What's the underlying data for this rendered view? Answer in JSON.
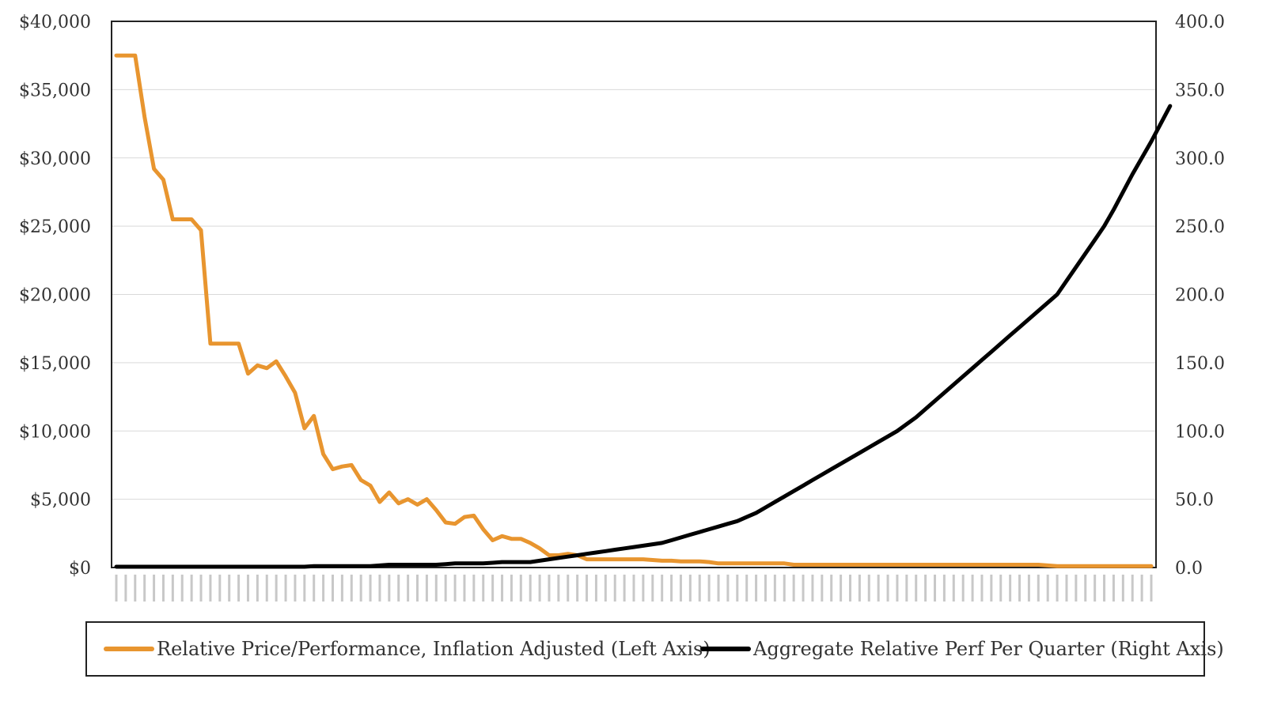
{
  "chart_data": {
    "type": "line",
    "x_tick_labels": "illegible (rotated quarter labels)",
    "y_left": {
      "ticks": [
        "$0",
        "$5,000",
        "$10,000",
        "$15,000",
        "$20,000",
        "$25,000",
        "$30,000",
        "$35,000",
        "$40,000"
      ],
      "ylim": [
        0,
        40000
      ]
    },
    "y_right": {
      "ticks": [
        "0.0",
        "50.0",
        "100.0",
        "150.0",
        "200.0",
        "250.0",
        "300.0",
        "350.0",
        "400.0"
      ],
      "ylim": [
        0,
        400
      ]
    },
    "grid": "horizontal",
    "legend_position": "bottom",
    "series": [
      {
        "name": "Relative Price/Performance, Inflation Adjusted (Left Axis)",
        "axis": "left",
        "color": "#e8952f",
        "values": [
          37500,
          37500,
          37500,
          33000,
          29200,
          28400,
          25500,
          25500,
          25500,
          24700,
          16400,
          16400,
          16400,
          16400,
          14200,
          14800,
          14600,
          15100,
          14000,
          12800,
          10200,
          11100,
          8300,
          7200,
          7400,
          7500,
          6400,
          6000,
          4800,
          5500,
          4700,
          5000,
          4600,
          5000,
          4200,
          3300,
          3200,
          3700,
          3800,
          2800,
          2000,
          2300,
          2100,
          2100,
          1800,
          1400,
          900,
          900,
          1000,
          900,
          600,
          600,
          600,
          600,
          600,
          600,
          600,
          550,
          500,
          500,
          450,
          450,
          450,
          400,
          300,
          300,
          300,
          300,
          300,
          300,
          300,
          300,
          200,
          200,
          200,
          200,
          200,
          200,
          200,
          200,
          200,
          200,
          200,
          200,
          200,
          200,
          200,
          200,
          200,
          200,
          200,
          200,
          200,
          200,
          200,
          200,
          200,
          200,
          200,
          150,
          100,
          100,
          100,
          100,
          100,
          100,
          100,
          100,
          100,
          100,
          100
        ]
      },
      {
        "name": "Aggregate Relative Perf Per Quarter (Right Axis)",
        "axis": "right",
        "color": "#000000",
        "values": [
          0.5,
          0.5,
          0.5,
          0.5,
          0.5,
          0.5,
          0.5,
          0.5,
          0.5,
          0.5,
          0.5,
          0.5,
          0.5,
          0.5,
          0.5,
          0.5,
          0.5,
          0.5,
          0.5,
          0.5,
          0.5,
          1,
          1,
          1,
          1,
          1,
          1,
          1,
          1.5,
          2,
          2,
          2,
          2,
          2,
          2,
          2.5,
          3,
          3,
          3,
          3,
          3.5,
          4,
          4,
          4,
          4,
          5,
          6,
          7,
          8,
          9,
          10,
          11,
          12,
          13,
          14,
          15,
          16,
          17,
          18,
          20,
          22,
          24,
          26,
          28,
          30,
          32,
          34,
          37,
          40,
          44,
          48,
          52,
          56,
          60,
          64,
          68,
          72,
          76,
          80,
          84,
          88,
          92,
          96,
          100,
          105,
          110,
          116,
          122,
          128,
          134,
          140,
          146,
          152,
          158,
          164,
          170,
          176,
          182,
          188,
          194,
          200,
          210,
          220,
          230,
          240,
          250,
          262,
          275,
          288,
          300,
          312,
          325,
          338
        ]
      }
    ]
  }
}
